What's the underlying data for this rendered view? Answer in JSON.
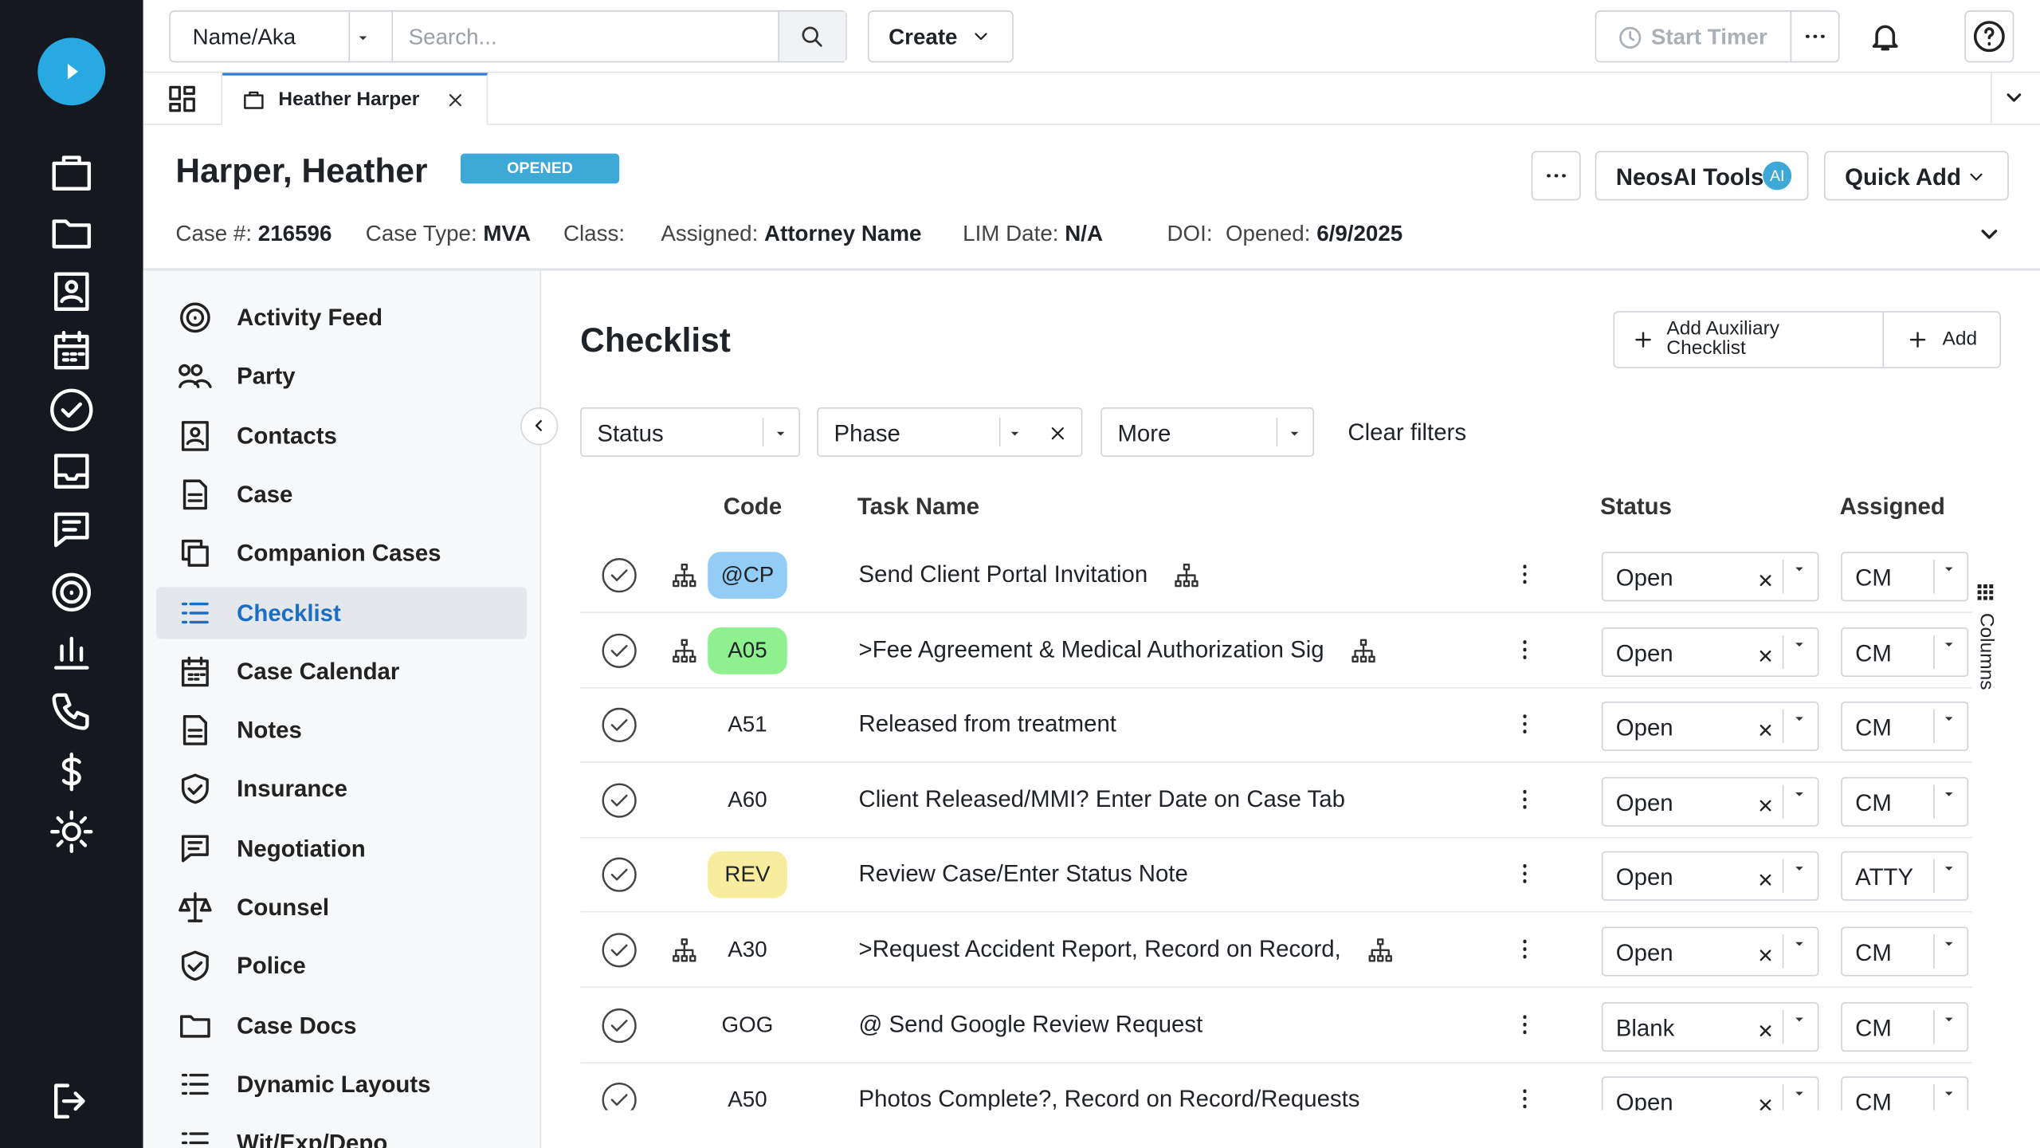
{
  "topbar": {
    "search_field": "Name/Aka",
    "search_placeholder": "Search...",
    "create": "Create",
    "start_timer": "Start Timer"
  },
  "tab": {
    "label": "Heather Harper"
  },
  "case": {
    "name": "Harper, Heather",
    "status": "OPENED",
    "fields": [
      {
        "label": "Case #:",
        "value": "216596"
      },
      {
        "label": "Case Type:",
        "value": "MVA"
      },
      {
        "label": "Class:"
      },
      {
        "label": "Assigned:",
        "value": "Attorney Name"
      },
      {
        "label": "LIM Date:",
        "value": "N/A"
      },
      {
        "label": "DOI:"
      },
      {
        "label": "Opened:",
        "value": "6/9/2025"
      }
    ]
  },
  "actions": {
    "neosai": "NeosAI Tools",
    "ai_badge": "AI",
    "quick_add": "Quick Add"
  },
  "nav": {
    "items": [
      "Activity Feed",
      "Party",
      "Contacts",
      "Case",
      "Companion Cases",
      "Checklist",
      "Case Calendar",
      "Notes",
      "Insurance",
      "Negotiation",
      "Counsel",
      "Police",
      "Case Docs",
      "Dynamic Layouts",
      "Wit/Exp/Depo"
    ],
    "active_index": 5
  },
  "checklist": {
    "title": "Checklist",
    "add_aux": "Add Auxiliary Checklist",
    "add": "Add",
    "filters": [
      "Status",
      "Phase",
      "More"
    ],
    "clear_filters": "Clear filters",
    "columns_label": "Columns",
    "headers": {
      "code": "Code",
      "task": "Task Name",
      "status": "Status",
      "assigned": "Assigned"
    },
    "rows": [
      {
        "code": "@CP",
        "code_color": "#93cdf6",
        "task": "Send Client Portal Invitation",
        "workflow": true,
        "status": "Open",
        "assigned": "CM"
      },
      {
        "code": "A05",
        "code_color": "#8ef08e",
        "task": ">Fee Agreement & Medical Authorization Sig",
        "workflow": true,
        "status": "Open",
        "assigned": "CM"
      },
      {
        "code": "A51",
        "task": "Released from treatment",
        "workflow": false,
        "status": "Open",
        "assigned": "CM"
      },
      {
        "code": "A60",
        "task": "Client Released/MMI? Enter Date on Case Tab",
        "workflow": false,
        "status": "Open",
        "assigned": "CM"
      },
      {
        "code": "REV",
        "code_color": "#f8ec9e",
        "task": "Review Case/Enter Status Note",
        "workflow": false,
        "status": "Open",
        "assigned": "ATTY"
      },
      {
        "code": "A30",
        "task": ">Request Accident Report, Record on Record,",
        "workflow": true,
        "status": "Open",
        "assigned": "CM"
      },
      {
        "code": "GOG",
        "task": "@ Send Google Review Request",
        "workflow": false,
        "status": "Blank",
        "assigned": "CM"
      },
      {
        "code": "A50",
        "task": "Photos Complete?, Record on Record/Requests",
        "workflow": false,
        "status": "Open",
        "assigned": "CM"
      }
    ]
  }
}
